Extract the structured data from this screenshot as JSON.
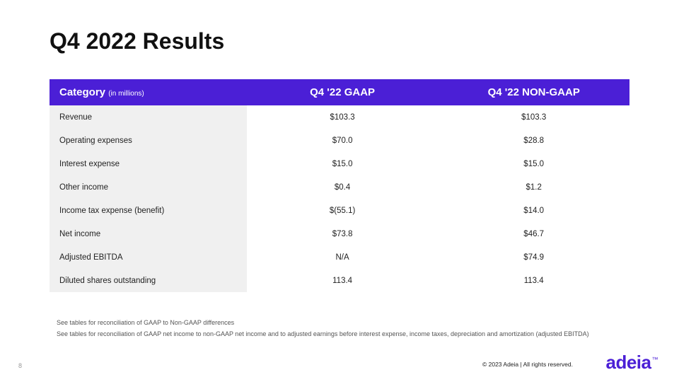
{
  "title": "Q4 2022 Results",
  "header": {
    "category_label": "Category",
    "category_sub": "(in millions)",
    "col1": "Q4 '22 GAAP",
    "col2": "Q4 '22 NON-GAAP"
  },
  "rows": [
    {
      "label": "Revenue",
      "gaap": "$103.3",
      "nongaap": "$103.3"
    },
    {
      "label": "Operating expenses",
      "gaap": "$70.0",
      "nongaap": "$28.8"
    },
    {
      "label": "Interest expense",
      "gaap": "$15.0",
      "nongaap": "$15.0"
    },
    {
      "label": "Other income",
      "gaap": "$0.4",
      "nongaap": "$1.2"
    },
    {
      "label": "Income tax expense (benefit)",
      "gaap": "$(55.1)",
      "nongaap": "$14.0"
    },
    {
      "label": "Net income",
      "gaap": "$73.8",
      "nongaap": "$46.7"
    },
    {
      "label": "Adjusted EBITDA",
      "gaap": "N/A",
      "nongaap": "$74.9"
    },
    {
      "label": "Diluted shares outstanding",
      "gaap": "113.4",
      "nongaap": "113.4"
    }
  ],
  "footnotes": {
    "line1": "See tables for reconciliation of GAAP to Non-GAAP differences",
    "line2": "See tables for reconciliation of GAAP net income to non-GAAP net income and to adjusted earnings before interest expense, income taxes, depreciation and amortization (adjusted EBITDA)"
  },
  "page_number": "8",
  "copyright": "© 2023 Adeia | All rights reserved.",
  "logo_text": "adeia",
  "logo_tm": "™",
  "colors": {
    "header_bg": "#4b1fd6",
    "header_text": "#ffffff",
    "cat_bg": "#f0f0f0",
    "body_text": "#222222",
    "logo_color": "#4b1fd6"
  }
}
